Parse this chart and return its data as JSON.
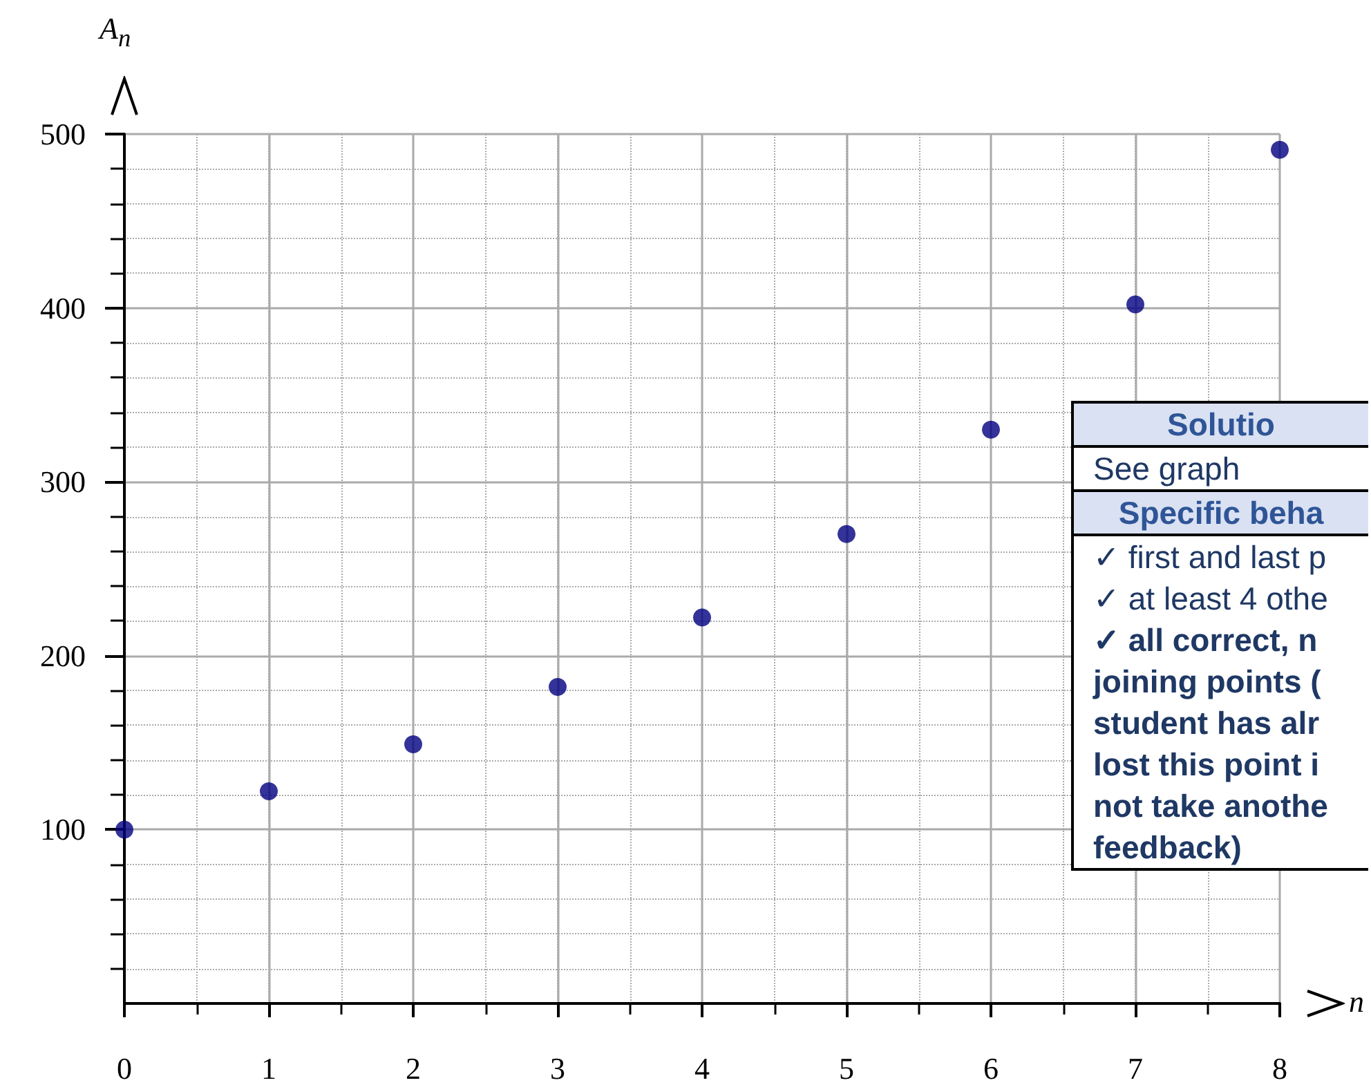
{
  "chart_data": {
    "type": "scatter",
    "xlabel": "n",
    "ylabel": "A$_{n}$",
    "x": [
      0,
      1,
      2,
      3,
      4,
      5,
      6,
      7,
      8
    ],
    "series": [
      {
        "color": "#000080",
        "values": [
          100,
          122,
          149,
          182,
          222,
          270,
          330,
          402,
          491
        ]
      }
    ],
    "xlim": [
      0,
      8
    ],
    "xticks": [
      0,
      1,
      2,
      3,
      4,
      5,
      6,
      7,
      8
    ],
    "ylim": [
      0,
      500
    ],
    "yticks": [
      100,
      200,
      300,
      400,
      500
    ],
    "grid": true,
    "marker": "circle",
    "annotations": [
      "Solutio",
      "See graph",
      "Specific beha",
      "✓ first and last p",
      "✓ at least 4 othe",
      "✓ all correct, n",
      "joining points (",
      "student has alr",
      "lost this point i",
      "not take anothe",
      "feedback)"
    ]
  }
}
